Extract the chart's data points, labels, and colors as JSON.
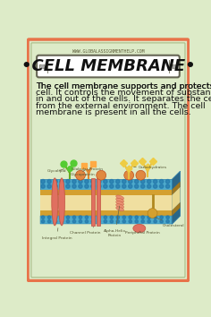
{
  "bg_color": "#ddebc8",
  "border_outer_color": "#e8734a",
  "border_inner_color": "#b8c890",
  "website": "WWW.GLOBALASSIGNMENTHELP.COM",
  "title": "•CELL MEMBRANE•",
  "description": "The cell membrane supports and protects the cell. It controls the movement of substances in and out of the cells. It separates the cell from the external environment. The cell membrane is present in all the cells.",
  "title_fontsize": 13,
  "desc_fontsize": 6.8,
  "blue_membrane": "#4eaacc",
  "blue_dark": "#2277aa",
  "gold_layer": "#d4a030",
  "inner_bg": "#f0dfa0",
  "salmon": "#e07060",
  "salmon_dark": "#c05040",
  "green_glyco": "#6aaa22",
  "orange_glyco": "#e08830",
  "yellow_carb": "#e8c040",
  "cholesterol_color": "#d4a030",
  "label_color": "#555533",
  "arrow_color": "#666644",
  "label_fontsize": 3.2
}
